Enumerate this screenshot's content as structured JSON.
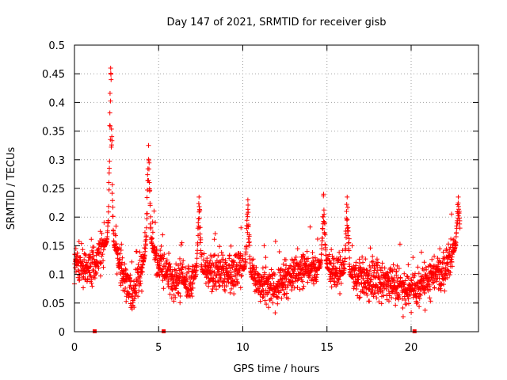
{
  "chart_data": {
    "type": "scatter",
    "title": "Day 147 of 2021, SRMTID for receiver gisb",
    "xlabel": "GPS time / hours",
    "ylabel": "SRMTID / TECUs",
    "xlim": [
      0,
      24
    ],
    "ylim": [
      0,
      0.5
    ],
    "xticks": [
      0,
      5,
      10,
      15,
      20
    ],
    "xtick_labels": [
      "0",
      "5",
      "10",
      "15",
      "20"
    ],
    "yticks": [
      0,
      0.05,
      0.1,
      0.15,
      0.2,
      0.25,
      0.3,
      0.35,
      0.4,
      0.45,
      0.5
    ],
    "ytick_labels": [
      "0",
      "0.05",
      "0.1",
      "0.15",
      "0.2",
      "0.25",
      "0.3",
      "0.35",
      "0.4",
      "0.45",
      "0.5"
    ],
    "grid": true,
    "marker": "+",
    "color": "#ff0000",
    "x_data_range": [
      0,
      22.9
    ],
    "point_count": 2200,
    "baseline_trend": [
      [
        0.0,
        0.12
      ],
      [
        1.0,
        0.11
      ],
      [
        2.0,
        0.16
      ],
      [
        2.5,
        0.14
      ],
      [
        3.0,
        0.09
      ],
      [
        3.5,
        0.06
      ],
      [
        4.0,
        0.11
      ],
      [
        4.4,
        0.16
      ],
      [
        5.0,
        0.12
      ],
      [
        6.0,
        0.09
      ],
      [
        7.0,
        0.09
      ],
      [
        8.0,
        0.11
      ],
      [
        9.0,
        0.1
      ],
      [
        10.0,
        0.11
      ],
      [
        11.0,
        0.08
      ],
      [
        12.0,
        0.08
      ],
      [
        13.0,
        0.1
      ],
      [
        14.0,
        0.11
      ],
      [
        15.0,
        0.11
      ],
      [
        16.0,
        0.1
      ],
      [
        17.0,
        0.09
      ],
      [
        18.0,
        0.09
      ],
      [
        19.0,
        0.08
      ],
      [
        20.0,
        0.07
      ],
      [
        21.0,
        0.09
      ],
      [
        22.0,
        0.11
      ],
      [
        22.9,
        0.16
      ]
    ],
    "peaks": [
      {
        "x": 2.15,
        "y": 0.46
      },
      {
        "x": 4.4,
        "y": 0.325
      },
      {
        "x": 7.4,
        "y": 0.235
      },
      {
        "x": 10.3,
        "y": 0.23
      },
      {
        "x": 14.8,
        "y": 0.24
      },
      {
        "x": 16.2,
        "y": 0.235
      },
      {
        "x": 22.8,
        "y": 0.235
      }
    ],
    "zero_markers": [
      1.2,
      5.3,
      20.2
    ]
  }
}
